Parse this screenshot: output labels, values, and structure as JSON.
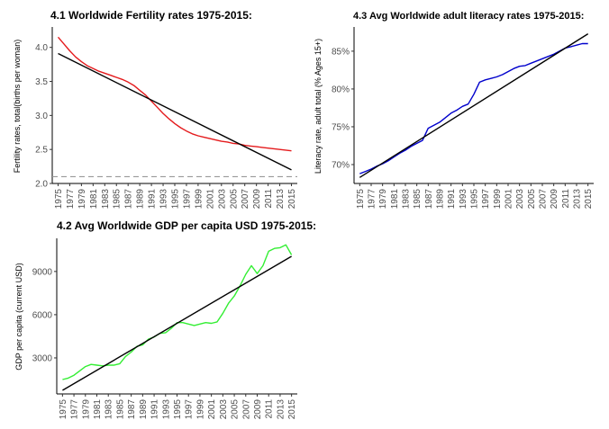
{
  "chart_data": [
    {
      "id": "fertility",
      "type": "line",
      "title": "4.1 Worldwide Fertility rates 1975-2015:",
      "ylabel": "Fertility rates, total(births per woman)",
      "xlabel": "",
      "xlim": [
        1974,
        2016
      ],
      "ylim": [
        2.0,
        4.3
      ],
      "x_ticks": [
        1975,
        1977,
        1979,
        1981,
        1983,
        1985,
        1987,
        1989,
        1991,
        1993,
        1995,
        1997,
        1999,
        2001,
        2003,
        2005,
        2007,
        2009,
        2011,
        2013,
        2015
      ],
      "y_ticks": [
        2.0,
        2.5,
        3.0,
        3.5,
        4.0
      ],
      "y_tick_labels": [
        "2.0",
        "2.5",
        "3.0",
        "3.5",
        "4.0"
      ],
      "grid": false,
      "reference_line": {
        "y": 2.1,
        "style": "dashed",
        "color": "#999999"
      },
      "series": [
        {
          "color": "#e41a1c",
          "x": [
            1975,
            1976,
            1977,
            1978,
            1979,
            1980,
            1981,
            1982,
            1983,
            1984,
            1985,
            1986,
            1987,
            1988,
            1989,
            1990,
            1991,
            1992,
            1993,
            1994,
            1995,
            1996,
            1997,
            1998,
            1999,
            2000,
            2001,
            2002,
            2003,
            2004,
            2005,
            2006,
            2007,
            2008,
            2009,
            2010,
            2011,
            2012,
            2013,
            2014,
            2015
          ],
          "values": [
            4.15,
            4.05,
            3.95,
            3.86,
            3.79,
            3.73,
            3.69,
            3.65,
            3.62,
            3.59,
            3.56,
            3.53,
            3.49,
            3.44,
            3.37,
            3.3,
            3.21,
            3.12,
            3.03,
            2.95,
            2.88,
            2.82,
            2.77,
            2.73,
            2.7,
            2.68,
            2.66,
            2.64,
            2.62,
            2.61,
            2.59,
            2.58,
            2.56,
            2.55,
            2.54,
            2.53,
            2.52,
            2.51,
            2.5,
            2.49,
            2.48
          ]
        },
        {
          "color": "#000000",
          "x": [
            1975,
            2015
          ],
          "values": [
            3.91,
            2.2
          ]
        }
      ]
    },
    {
      "id": "literacy",
      "type": "line",
      "title": "4.3 Avg Worldwide adult literacy rates 1975-2015:",
      "ylabel": "Literacy rate, adult total (% Ages 15+)",
      "xlabel": "",
      "xlim": [
        1974,
        2016
      ],
      "ylim": [
        67.5,
        88.2
      ],
      "x_ticks": [
        1975,
        1977,
        1979,
        1981,
        1983,
        1985,
        1987,
        1989,
        1991,
        1993,
        1995,
        1997,
        1999,
        2001,
        2003,
        2005,
        2007,
        2009,
        2011,
        2013,
        2015
      ],
      "y_ticks": [
        70,
        75,
        80,
        85
      ],
      "y_tick_labels": [
        "70%",
        "75%",
        "80%",
        "85%"
      ],
      "grid": false,
      "series": [
        {
          "color": "#0000cc",
          "x": [
            1975,
            1976,
            1977,
            1978,
            1979,
            1980,
            1981,
            1982,
            1983,
            1984,
            1985,
            1986,
            1987,
            1988,
            1989,
            1990,
            1991,
            1992,
            1993,
            1994,
            1995,
            1996,
            1997,
            1998,
            1999,
            2000,
            2001,
            2002,
            2003,
            2004,
            2005,
            2006,
            2007,
            2008,
            2009,
            2010,
            2011,
            2012,
            2013,
            2014,
            2015
          ],
          "values": [
            68.8,
            69.1,
            69.4,
            69.8,
            70.1,
            70.5,
            71.0,
            71.5,
            71.9,
            72.4,
            72.8,
            73.2,
            74.8,
            75.2,
            75.6,
            76.2,
            76.8,
            77.2,
            77.7,
            78.0,
            79.3,
            80.9,
            81.2,
            81.4,
            81.6,
            81.9,
            82.3,
            82.7,
            83.0,
            83.1,
            83.4,
            83.7,
            84.0,
            84.3,
            84.6,
            85.0,
            85.4,
            85.6,
            85.8,
            86.0,
            86.0
          ]
        },
        {
          "color": "#000000",
          "x": [
            1975,
            2015
          ],
          "values": [
            68.3,
            87.3
          ]
        }
      ]
    },
    {
      "id": "gdp",
      "type": "line",
      "title": "4.2 Avg Worldwide GDP per capita USD 1975-2015:",
      "ylabel": "GDP per capita (current USD)",
      "xlabel": "",
      "xlim": [
        1974,
        2016
      ],
      "ylim": [
        500,
        11300
      ],
      "x_ticks": [
        1975,
        1977,
        1979,
        1981,
        1983,
        1985,
        1987,
        1989,
        1991,
        1993,
        1995,
        1997,
        1999,
        2001,
        2003,
        2005,
        2007,
        2009,
        2011,
        2013,
        2015
      ],
      "y_ticks": [
        3000,
        6000,
        9000
      ],
      "y_tick_labels": [
        "3000",
        "6000",
        "9000"
      ],
      "grid": false,
      "series": [
        {
          "color": "#33ee33",
          "x": [
            1975,
            1976,
            1977,
            1978,
            1979,
            1980,
            1981,
            1982,
            1983,
            1984,
            1985,
            1986,
            1987,
            1988,
            1989,
            1990,
            1991,
            1992,
            1993,
            1994,
            1995,
            1996,
            1997,
            1998,
            1999,
            2000,
            2001,
            2002,
            2003,
            2004,
            2005,
            2006,
            2007,
            2008,
            2009,
            2010,
            2011,
            2012,
            2013,
            2014,
            2015
          ],
          "values": [
            1500,
            1600,
            1800,
            2100,
            2400,
            2550,
            2500,
            2450,
            2500,
            2500,
            2600,
            3100,
            3400,
            3800,
            3900,
            4300,
            4450,
            4700,
            4750,
            5050,
            5450,
            5450,
            5350,
            5250,
            5350,
            5450,
            5400,
            5500,
            6100,
            6800,
            7300,
            8000,
            8800,
            9400,
            8850,
            9400,
            10400,
            10600,
            10650,
            10850,
            10150
          ]
        },
        {
          "color": "#000000",
          "x": [
            1975,
            2015
          ],
          "values": [
            750,
            10050
          ]
        }
      ]
    }
  ]
}
